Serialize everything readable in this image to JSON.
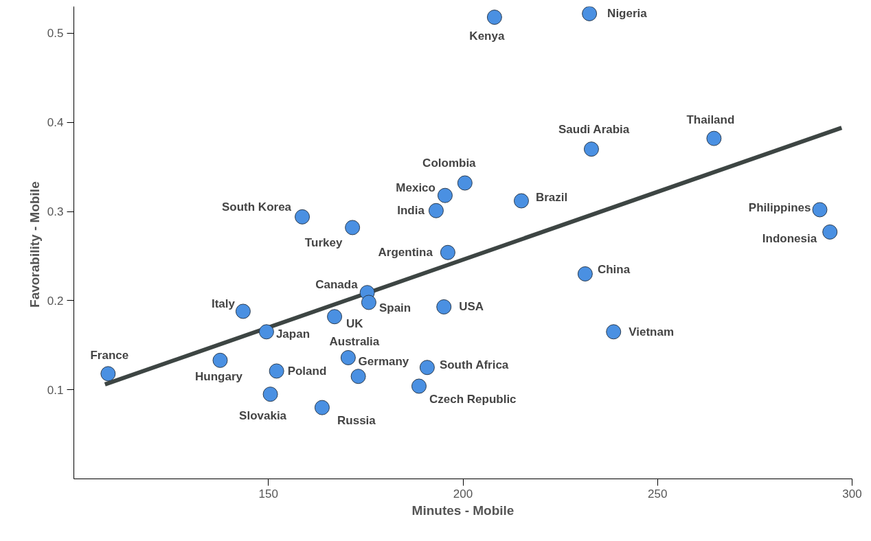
{
  "chart_data": {
    "type": "scatter",
    "xlabel": "Minutes - Mobile",
    "ylabel": "Favorability  - Mobile",
    "xlim": [
      100,
      300
    ],
    "ylim": [
      0,
      0.53
    ],
    "xticks": [
      150,
      200,
      250,
      300
    ],
    "yticks": [
      0.1,
      0.2,
      0.3,
      0.4,
      0.5
    ],
    "grid": false,
    "series": [
      {
        "marker": "circle",
        "color": "#4a90e2",
        "x": [
          108.8,
          137.6,
          143.5,
          149.5,
          152.1,
          150.5,
          158.7,
          163.8,
          167.0,
          170.5,
          171.6,
          173.1,
          175.4,
          175.8,
          188.7,
          190.8,
          193.1,
          195.1,
          195.4,
          196.1,
          200.5,
          208.1,
          215.0,
          231.4,
          232.5,
          233.0,
          238.7,
          264.5,
          291.7,
          294.3
        ],
        "values": [
          0.118,
          0.133,
          0.188,
          0.165,
          0.121,
          0.095,
          0.294,
          0.08,
          0.182,
          0.136,
          0.282,
          0.115,
          0.209,
          0.198,
          0.104,
          0.125,
          0.301,
          0.193,
          0.318,
          0.254,
          0.332,
          0.518,
          0.312,
          0.23,
          0.522,
          0.37,
          0.165,
          0.382,
          0.302,
          0.277
        ]
      },
      {
        "type": "line",
        "color": "#3d4543",
        "line_style": "solid",
        "x": [
          108.0,
          297.3
        ],
        "values": [
          0.106,
          0.394
        ]
      }
    ],
    "annotations": [
      {
        "text": "France",
        "x": 108.8,
        "y": 0.118
      },
      {
        "text": "Hungary",
        "x": 137.6,
        "y": 0.133
      },
      {
        "text": "Italy",
        "x": 143.5,
        "y": 0.188
      },
      {
        "text": "Japan",
        "x": 149.5,
        "y": 0.165
      },
      {
        "text": "Poland",
        "x": 152.1,
        "y": 0.121
      },
      {
        "text": "Slovakia",
        "x": 150.5,
        "y": 0.095
      },
      {
        "text": "South Korea",
        "x": 158.7,
        "y": 0.294
      },
      {
        "text": "Russia",
        "x": 163.8,
        "y": 0.08
      },
      {
        "text": "UK",
        "x": 167.0,
        "y": 0.182
      },
      {
        "text": "Australia",
        "x": 170.5,
        "y": 0.136
      },
      {
        "text": "Turkey",
        "x": 171.6,
        "y": 0.282
      },
      {
        "text": "Germany",
        "x": 173.1,
        "y": 0.115
      },
      {
        "text": "Canada",
        "x": 175.4,
        "y": 0.209
      },
      {
        "text": "Spain",
        "x": 175.8,
        "y": 0.198
      },
      {
        "text": "Czech Republic",
        "x": 188.7,
        "y": 0.104
      },
      {
        "text": "South Africa",
        "x": 190.8,
        "y": 0.125
      },
      {
        "text": "India",
        "x": 193.1,
        "y": 0.301
      },
      {
        "text": "USA",
        "x": 195.1,
        "y": 0.193
      },
      {
        "text": "Mexico",
        "x": 195.4,
        "y": 0.318
      },
      {
        "text": "Argentina",
        "x": 196.1,
        "y": 0.254
      },
      {
        "text": "Colombia",
        "x": 200.5,
        "y": 0.332
      },
      {
        "text": "Kenya",
        "x": 208.1,
        "y": 0.518
      },
      {
        "text": "Brazil",
        "x": 215.0,
        "y": 0.312
      },
      {
        "text": "China",
        "x": 231.4,
        "y": 0.23
      },
      {
        "text": "Nigeria",
        "x": 232.5,
        "y": 0.522
      },
      {
        "text": "Saudi Arabia",
        "x": 233.0,
        "y": 0.37
      },
      {
        "text": "Vietnam",
        "x": 238.7,
        "y": 0.165
      },
      {
        "text": "Thailand",
        "x": 264.5,
        "y": 0.382
      },
      {
        "text": "Philippines",
        "x": 291.7,
        "y": 0.302
      },
      {
        "text": "Indonesia",
        "x": 294.3,
        "y": 0.277
      }
    ]
  }
}
